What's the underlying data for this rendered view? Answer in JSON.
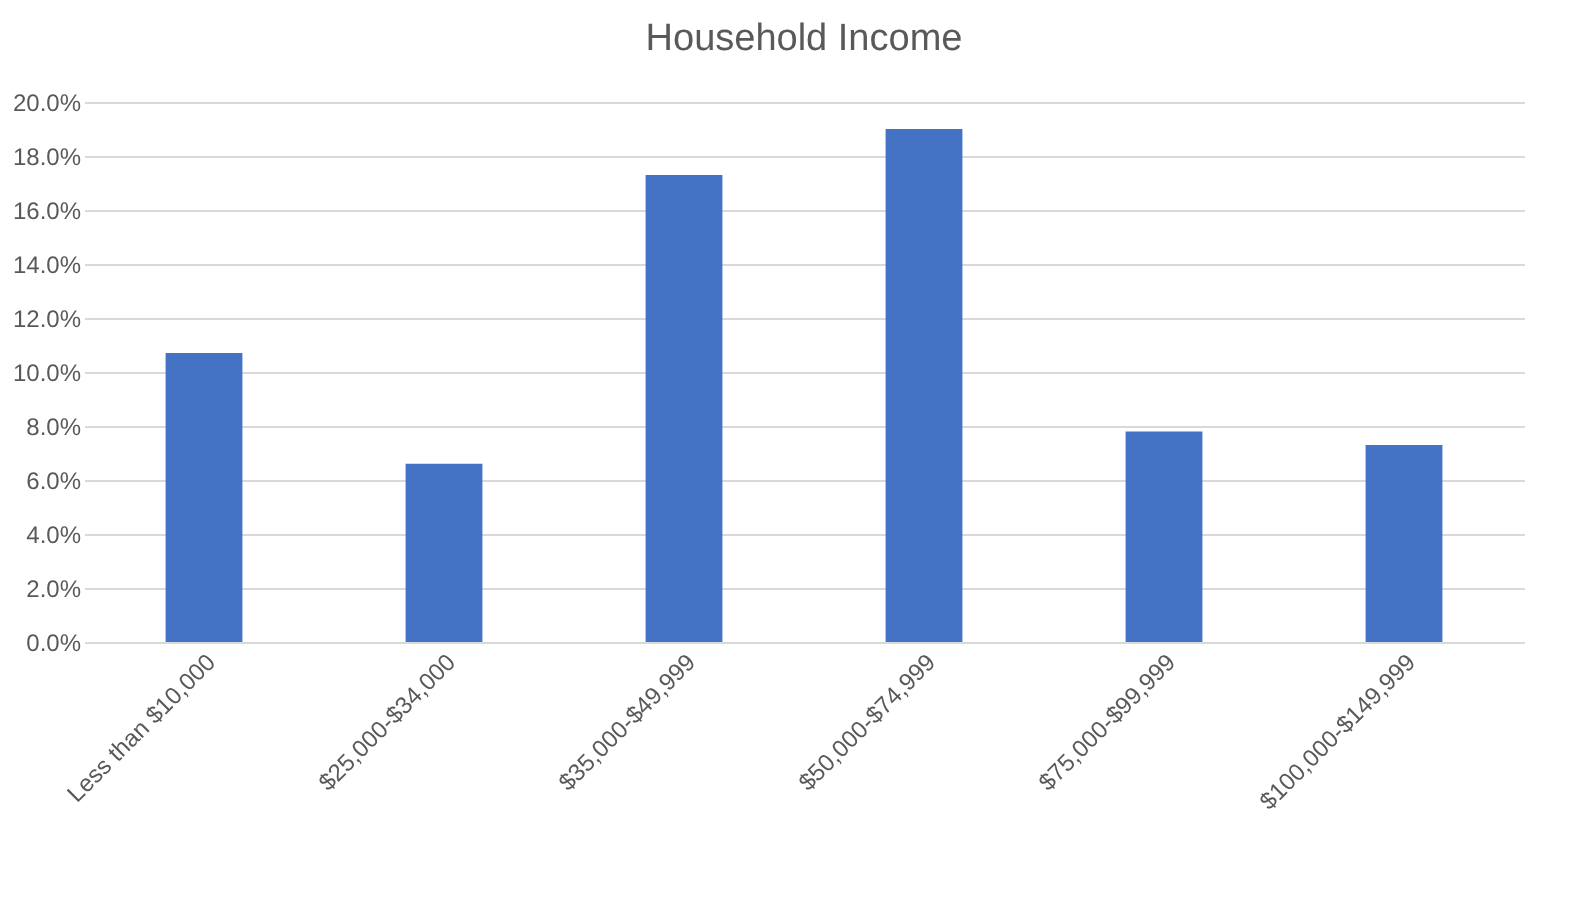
{
  "chart_data": {
    "type": "bar",
    "title": "Household Income",
    "categories": [
      "Less than $10,000",
      "$25,000-$34,000",
      "$35,000-$49,999",
      "$50,000-$74,999",
      "$75,000-$99,999",
      "$100,000-$149,999"
    ],
    "values": [
      10.7,
      6.6,
      17.3,
      19.0,
      7.8,
      7.3
    ],
    "color": "#4472c4",
    "ylim": [
      0,
      20
    ],
    "yticks": [
      {
        "value": 0,
        "label": "0.0%"
      },
      {
        "value": 2,
        "label": "2.0%"
      },
      {
        "value": 4,
        "label": "4.0%"
      },
      {
        "value": 6,
        "label": "6.0%"
      },
      {
        "value": 8,
        "label": "8.0%"
      },
      {
        "value": 10,
        "label": "10.0%"
      },
      {
        "value": 12,
        "label": "12.0%"
      },
      {
        "value": 14,
        "label": "14.0%"
      },
      {
        "value": 16,
        "label": "16.0%"
      },
      {
        "value": 18,
        "label": "18.0%"
      },
      {
        "value": 20,
        "label": "20.0%"
      }
    ],
    "grid": "y"
  }
}
